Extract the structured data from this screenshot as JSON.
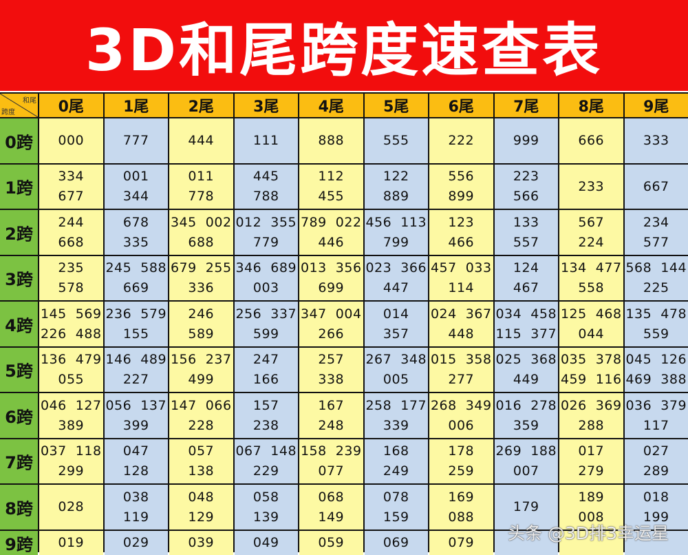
{
  "title": "3D和尾跨度速查表",
  "corner": {
    "top_right": "和尾",
    "bottom_left": "跨度"
  },
  "columns": [
    "0尾",
    "1尾",
    "2尾",
    "3尾",
    "4尾",
    "5尾",
    "6尾",
    "7尾",
    "8尾",
    "9尾"
  ],
  "rows": [
    {
      "label": "0跨",
      "cells": [
        [
          "000"
        ],
        [
          "777"
        ],
        [
          "444"
        ],
        [
          "111"
        ],
        [
          "888"
        ],
        [
          "555"
        ],
        [
          "222"
        ],
        [
          "999"
        ],
        [
          "666"
        ],
        [
          "333"
        ]
      ]
    },
    {
      "label": "1跨",
      "cells": [
        [
          "334",
          "677"
        ],
        [
          "001",
          "344"
        ],
        [
          "011",
          "778"
        ],
        [
          "445",
          "788"
        ],
        [
          "112",
          "455"
        ],
        [
          "122",
          "889"
        ],
        [
          "556",
          "899"
        ],
        [
          "223",
          "566"
        ],
        [
          "233"
        ],
        [
          "667"
        ]
      ]
    },
    {
      "label": "2跨",
      "cells": [
        [
          "244",
          "668"
        ],
        [
          "678",
          "335"
        ],
        [
          "345  002",
          "688"
        ],
        [
          "012  355",
          "779"
        ],
        [
          "789  022",
          "446"
        ],
        [
          "456  113",
          "799"
        ],
        [
          "123",
          "466"
        ],
        [
          "133",
          "557"
        ],
        [
          "567",
          "224"
        ],
        [
          "234",
          "577"
        ]
      ]
    },
    {
      "label": "3跨",
      "cells": [
        [
          "235",
          "578"
        ],
        [
          "245  588",
          "669"
        ],
        [
          "679  255",
          "336"
        ],
        [
          "346  689",
          "003"
        ],
        [
          "013  356",
          "699"
        ],
        [
          "023  366",
          "447"
        ],
        [
          "457  033",
          "114"
        ],
        [
          "124",
          "467"
        ],
        [
          "134  477",
          "558"
        ],
        [
          "568  144",
          "225"
        ]
      ]
    },
    {
      "label": "4跨",
      "cells": [
        [
          "145  569",
          "226  488"
        ],
        [
          "236  579",
          "155"
        ],
        [
          "246",
          "589"
        ],
        [
          "256  337",
          "599"
        ],
        [
          "347  004",
          "266"
        ],
        [
          "014",
          "357"
        ],
        [
          "024  367",
          "448"
        ],
        [
          "034  458",
          "115  377"
        ],
        [
          "125  468",
          "044"
        ],
        [
          "135  478",
          "559"
        ]
      ]
    },
    {
      "label": "5跨",
      "cells": [
        [
          "136  479",
          "055"
        ],
        [
          "146  489",
          "227"
        ],
        [
          "156  237",
          "499"
        ],
        [
          "247",
          "166"
        ],
        [
          "257",
          "338"
        ],
        [
          "267  348",
          "005"
        ],
        [
          "015  358",
          "277"
        ],
        [
          "025  368",
          "449"
        ],
        [
          "035  378",
          "459  116"
        ],
        [
          "045  126",
          "469  388"
        ]
      ]
    },
    {
      "label": "6跨",
      "cells": [
        [
          "046  127",
          "389"
        ],
        [
          "056  137",
          "399"
        ],
        [
          "147  066",
          "228"
        ],
        [
          "157",
          "238"
        ],
        [
          "167",
          "248"
        ],
        [
          "258  177",
          "339"
        ],
        [
          "268  349",
          "006"
        ],
        [
          "016  278",
          "359"
        ],
        [
          "026  369",
          "288"
        ],
        [
          "036  379",
          "117"
        ]
      ]
    },
    {
      "label": "7跨",
      "cells": [
        [
          "037  118",
          "299"
        ],
        [
          "047",
          "128"
        ],
        [
          "057",
          "138"
        ],
        [
          "067  148",
          "229"
        ],
        [
          "158  239",
          "077"
        ],
        [
          "168",
          "249"
        ],
        [
          "178",
          "259"
        ],
        [
          "269  188",
          "007"
        ],
        [
          "017",
          "279"
        ],
        [
          "027",
          "289"
        ]
      ]
    },
    {
      "label": "8跨",
      "cells": [
        [
          "028"
        ],
        [
          "038",
          "119"
        ],
        [
          "048",
          "129"
        ],
        [
          "058",
          "139"
        ],
        [
          "068",
          "149"
        ],
        [
          "078",
          "159"
        ],
        [
          "169",
          "088"
        ],
        [
          "179"
        ],
        [
          "189",
          "008"
        ],
        [
          "018",
          "199"
        ]
      ]
    },
    {
      "label": "9跨",
      "cells": [
        [
          "019"
        ],
        [
          "029"
        ],
        [
          "039"
        ],
        [
          "049"
        ],
        [
          "059"
        ],
        [
          "069"
        ],
        [
          "079"
        ],
        [
          ""
        ],
        [
          ""
        ],
        [
          ""
        ]
      ]
    }
  ],
  "watermark": "头条 @3D排3幸运星",
  "colors": {
    "title_bg": "#f20d0d",
    "header_bg": "#fbbd12",
    "row_header_bg": "#7cc242",
    "cell_yellow": "#fdf9a3",
    "cell_blue": "#c7d9ee"
  }
}
